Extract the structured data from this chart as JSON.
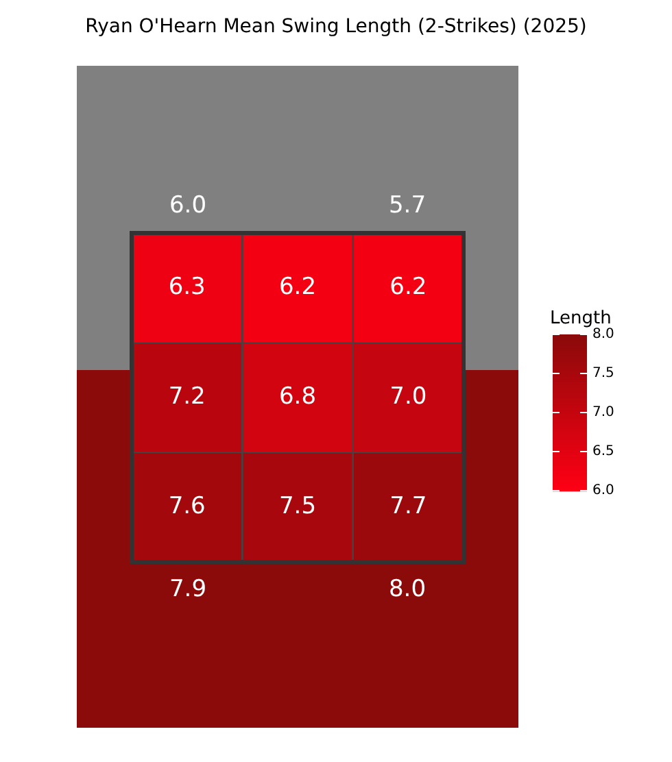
{
  "chart_data": {
    "type": "heatmap",
    "title": "Ryan O'Hearn Mean Swing Length (2-Strikes) (2025)",
    "categories": [
      null,
      null,
      null
    ],
    "y_categories": [
      null,
      null,
      null
    ],
    "cells": [
      [
        6.3,
        6.2,
        6.2
      ],
      [
        7.2,
        6.8,
        7.0
      ],
      [
        7.6,
        7.5,
        7.7
      ]
    ],
    "cell_labels": [
      [
        "6.3",
        "6.2",
        "6.2"
      ],
      [
        "7.2",
        "6.8",
        "7.0"
      ],
      [
        "7.6",
        "7.5",
        "7.7"
      ]
    ],
    "clabel": "Length",
    "clim": [
      6,
      8
    ],
    "cticks": [
      {
        "value": 6,
        "label": "6.0"
      },
      {
        "value": 6.5,
        "label": "6.5"
      },
      {
        "value": 7,
        "label": "7.0"
      },
      {
        "value": 7.5,
        "label": "7.5"
      },
      {
        "value": 8,
        "label": "8.0"
      }
    ],
    "annotations": [
      "6.0",
      "5.7",
      "7.9",
      "8.0"
    ]
  }
}
